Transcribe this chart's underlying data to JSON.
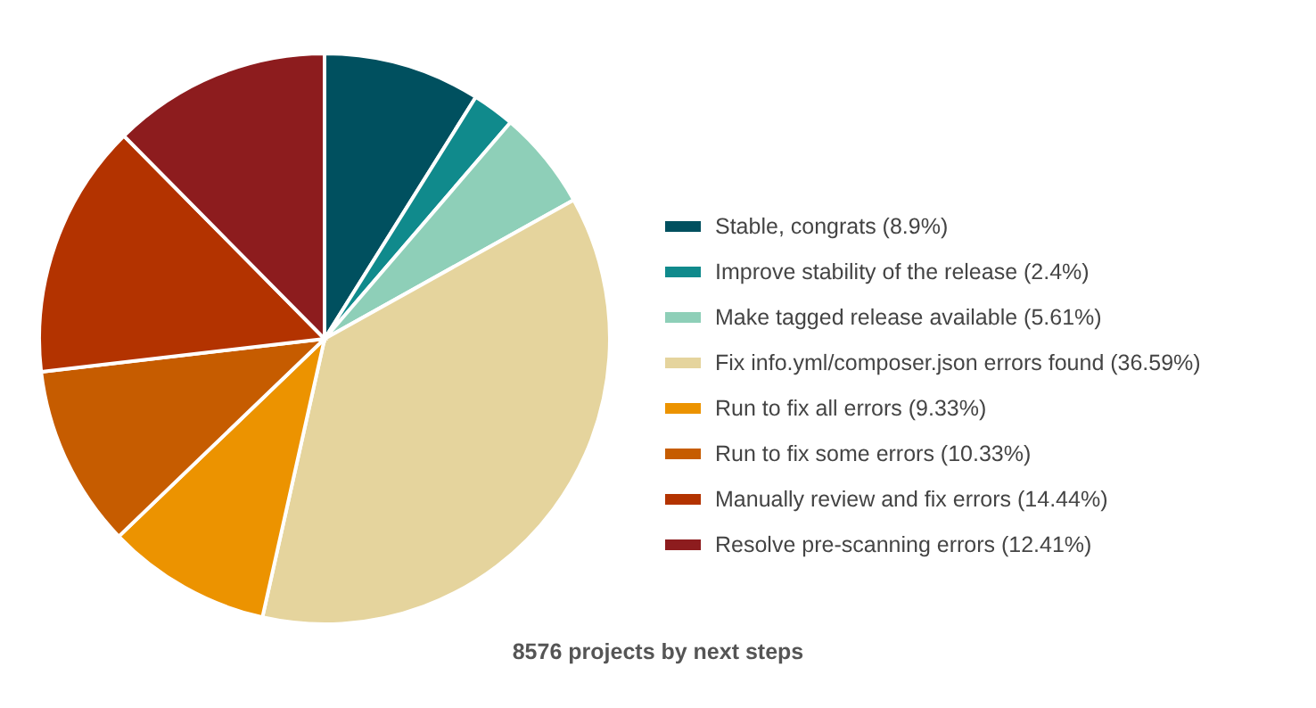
{
  "chart_data": {
    "type": "pie",
    "title": "8576 projects by next steps",
    "categories": [
      "Stable, congrats (8.9%)",
      "Improve stability of the release (2.4%)",
      "Make tagged release available (5.61%)",
      "Fix info.yml/composer.json errors found (36.59%)",
      "Run to fix all errors (9.33%)",
      "Run to fix some errors (10.33%)",
      "Manually review and fix errors (14.44%)",
      "Resolve pre-scanning errors (12.41%)"
    ],
    "values": [
      8.9,
      2.4,
      5.61,
      36.59,
      9.33,
      10.33,
      14.44,
      12.41
    ],
    "colors": [
      "#00505f",
      "#108a8c",
      "#8ecfb8",
      "#e5d49d",
      "#ec9300",
      "#c65c00",
      "#b33300",
      "#8d1c1e"
    ],
    "legend": "right"
  }
}
